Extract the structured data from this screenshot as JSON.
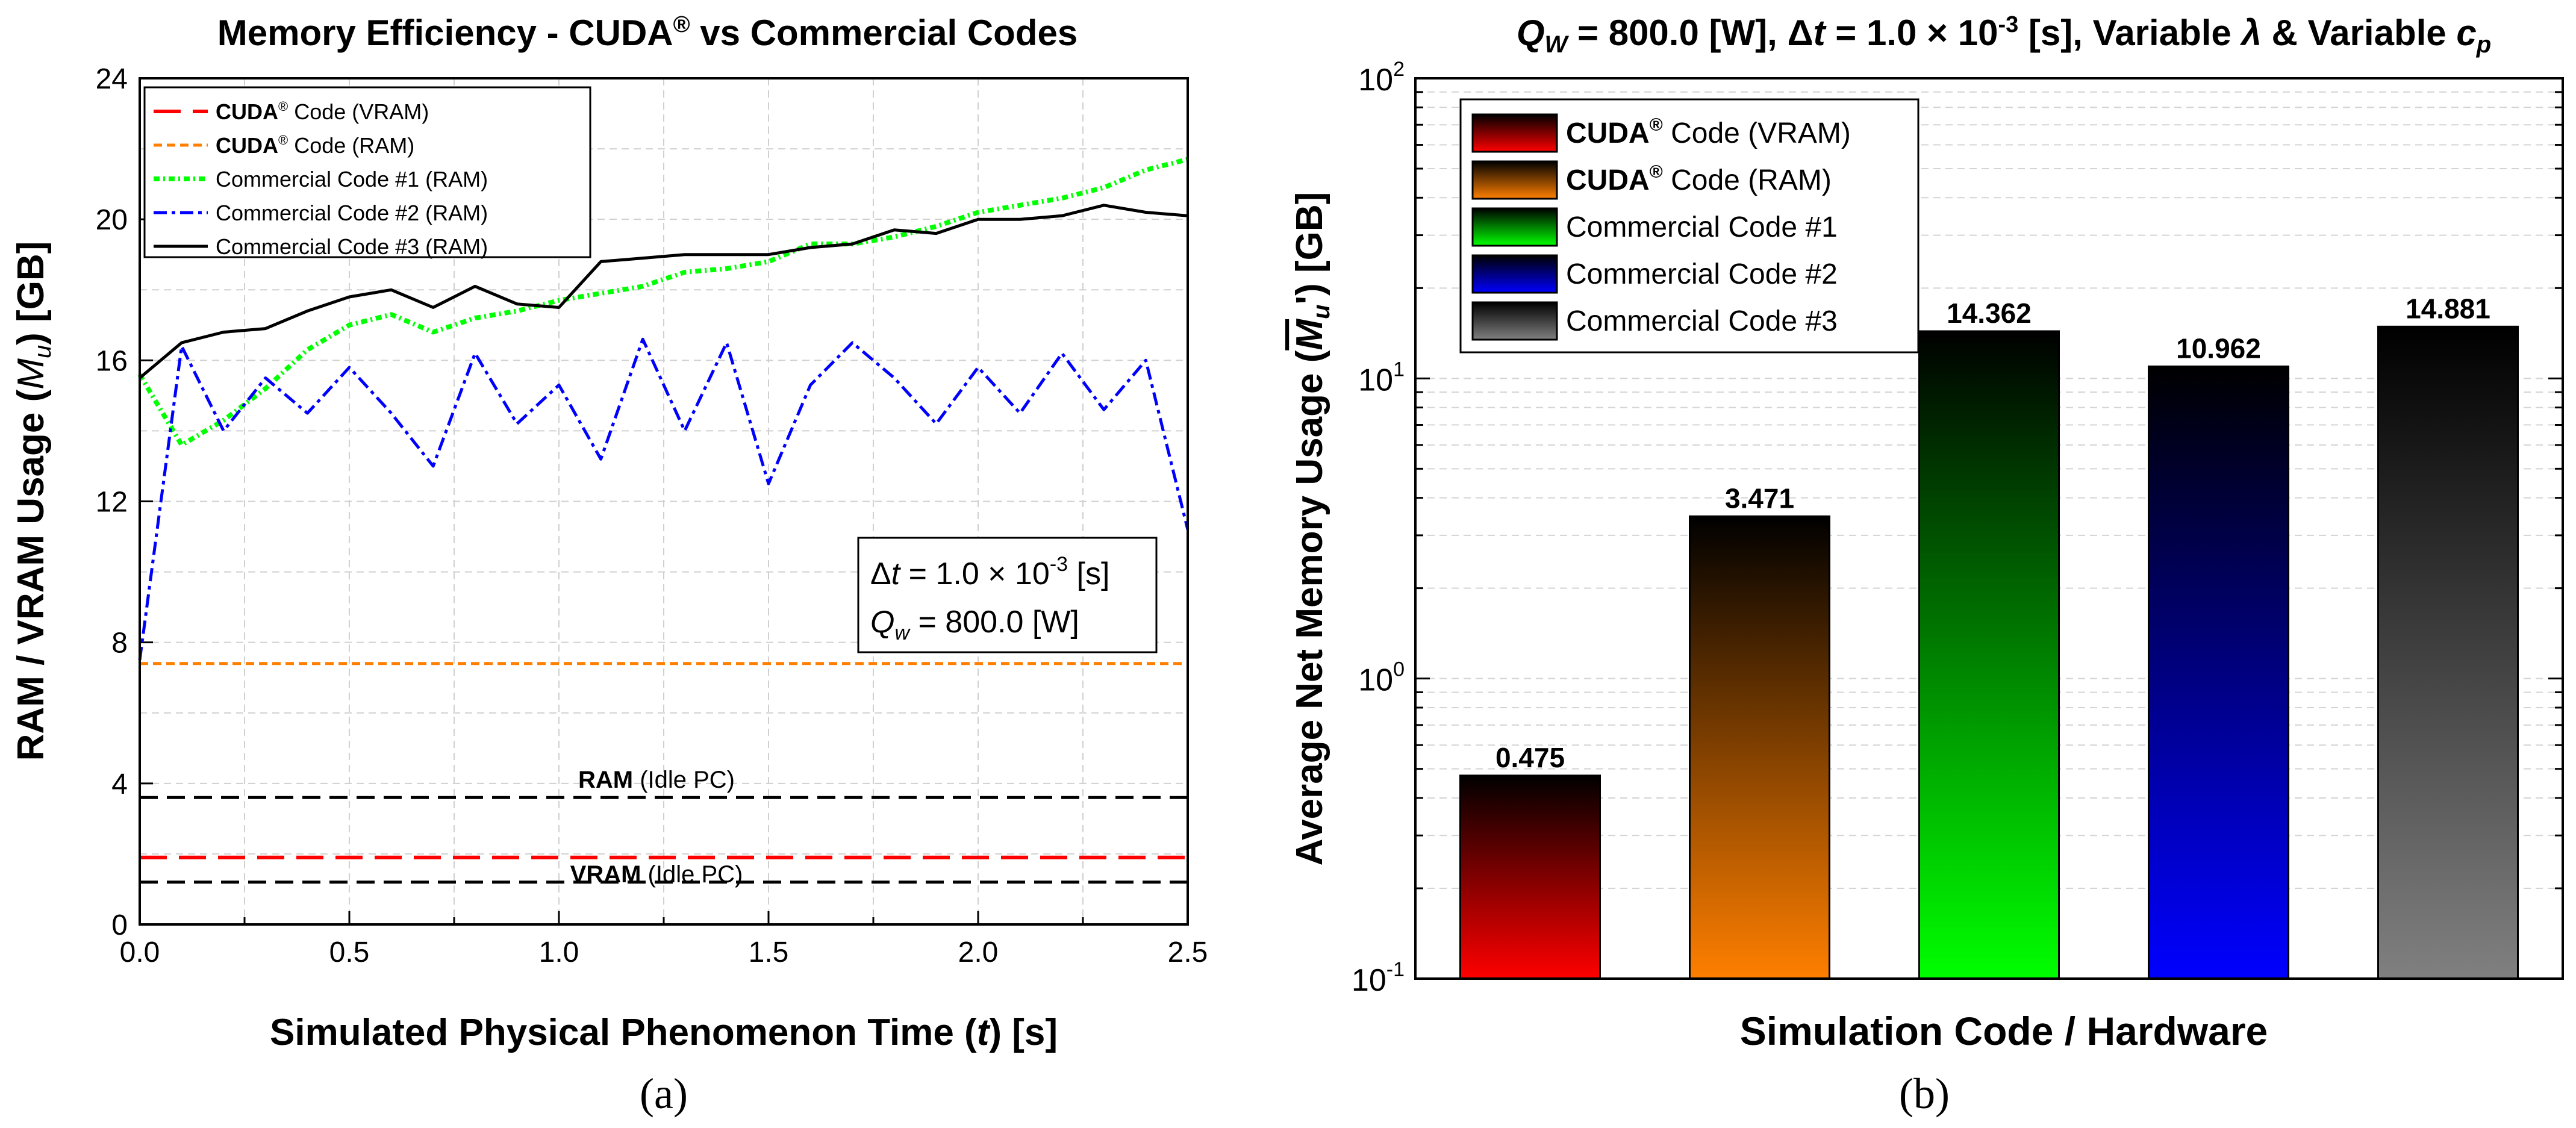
{
  "colors": {
    "cuda_vram": "#ff0000",
    "cuda_ram": "#ff7f00",
    "commercial_1": "#00ff00",
    "commercial_2": "#0000ff",
    "commercial_3": "#000000",
    "idle": "#000000",
    "bar_grey": "#808080"
  },
  "panel_a": {
    "title": "Memory Efficiency - CUDA® vs Commercial Codes",
    "xlabel": "Simulated Physical Phenomenon Time (t) [s]",
    "ylabel": "RAM / VRAM Usage (M_u) [GB]",
    "sublabel": "(a)",
    "legend": [
      {
        "bold": "CUDA",
        "sup": "®",
        "rest": " Code (VRAM)"
      },
      {
        "bold": "CUDA",
        "sup": "®",
        "rest": " Code (RAM)"
      },
      {
        "bold": "",
        "sup": "",
        "rest": "Commercial Code #1 (RAM)"
      },
      {
        "bold": "",
        "sup": "",
        "rest": "Commercial Code #2 (RAM)"
      },
      {
        "bold": "",
        "sup": "",
        "rest": "Commercial Code #3 (RAM)"
      }
    ],
    "annotation": {
      "line1": "Δt = 1.0 × 10-3 [s]",
      "line2": "Qw = 800.0 [W]"
    },
    "idle_labels": {
      "ram_bold": "RAM",
      "ram_rest": " (Idle PC)",
      "vram_bold": "VRAM",
      "vram_rest": " (Idle PC)"
    }
  },
  "panel_b": {
    "title": "Qw = 800.0 [W], Δt = 1.0 × 10-3 [s], Variable λ & Variable cp",
    "xlabel": "Simulation Code / Hardware",
    "ylabel": "Average Net Memory Usage (M̄u') [GB]",
    "sublabel": "(b)",
    "legend": [
      {
        "bold": "CUDA",
        "sup": "®",
        "rest": " Code (VRAM)"
      },
      {
        "bold": "CUDA",
        "sup": "®",
        "rest": " Code (RAM)"
      },
      {
        "bold": "",
        "sup": "",
        "rest": "Commercial Code #1"
      },
      {
        "bold": "",
        "sup": "",
        "rest": "Commercial Code #2"
      },
      {
        "bold": "",
        "sup": "",
        "rest": "Commercial Code #3"
      }
    ]
  },
  "chart_data": [
    {
      "type": "line",
      "title": "Memory Efficiency - CUDA® vs Commercial Codes",
      "xlabel": "Simulated Physical Phenomenon Time (t) [s]",
      "ylabel": "RAM / VRAM Usage (Mu) [GB]",
      "xlim": [
        0,
        2.5
      ],
      "ylim": [
        0,
        24
      ],
      "xticks": [
        "0.0",
        "0.5",
        "1.0",
        "1.5",
        "2.0",
        "2.5"
      ],
      "yticks": [
        "0",
        "4",
        "8",
        "12",
        "16",
        "20",
        "24"
      ],
      "x": [
        0.0,
        0.1,
        0.2,
        0.3,
        0.4,
        0.5,
        0.6,
        0.7,
        0.8,
        0.9,
        1.0,
        1.1,
        1.2,
        1.3,
        1.4,
        1.5,
        1.6,
        1.7,
        1.8,
        1.9,
        2.0,
        2.1,
        2.2,
        2.3,
        2.4,
        2.5
      ],
      "series": [
        {
          "name": "CUDA® Code (VRAM)",
          "values": [
            1.9,
            1.9,
            1.9,
            1.9,
            1.9,
            1.9,
            1.9,
            1.9,
            1.9,
            1.9,
            1.9,
            1.9,
            1.9,
            1.9,
            1.9,
            1.9,
            1.9,
            1.9,
            1.9,
            1.9,
            1.9,
            1.9,
            1.9,
            1.9,
            1.9,
            1.9
          ]
        },
        {
          "name": "CUDA® Code (RAM)",
          "values": [
            7.4,
            7.4,
            7.4,
            7.4,
            7.4,
            7.4,
            7.4,
            7.4,
            7.4,
            7.4,
            7.4,
            7.4,
            7.4,
            7.4,
            7.4,
            7.4,
            7.4,
            7.4,
            7.4,
            7.4,
            7.4,
            7.4,
            7.4,
            7.4,
            7.4,
            7.4
          ]
        },
        {
          "name": "Commercial Code #1 (RAM)",
          "values": [
            15.6,
            13.6,
            14.3,
            15.2,
            16.3,
            17.0,
            17.3,
            16.8,
            17.2,
            17.4,
            17.7,
            17.9,
            18.1,
            18.5,
            18.6,
            18.8,
            19.3,
            19.3,
            19.5,
            19.8,
            20.2,
            20.4,
            20.6,
            20.9,
            21.4,
            21.7
          ]
        },
        {
          "name": "Commercial Code #2 (RAM)",
          "values": [
            7.5,
            16.4,
            14.0,
            15.5,
            14.5,
            15.8,
            14.5,
            13.0,
            16.2,
            14.2,
            15.3,
            13.2,
            16.6,
            14.0,
            16.5,
            12.5,
            15.3,
            16.5,
            15.5,
            14.2,
            15.8,
            14.5,
            16.2,
            14.6,
            16.0,
            11.2
          ]
        },
        {
          "name": "Commercial Code #3 (RAM)",
          "values": [
            15.5,
            16.5,
            16.8,
            16.9,
            17.4,
            17.8,
            18.0,
            17.5,
            18.1,
            17.6,
            17.5,
            18.8,
            18.9,
            19.0,
            19.0,
            19.0,
            19.2,
            19.3,
            19.7,
            19.6,
            20.0,
            20.0,
            20.1,
            20.4,
            20.2,
            20.1
          ]
        },
        {
          "name": "RAM (Idle PC)",
          "values": [
            3.6,
            3.6,
            3.6,
            3.6,
            3.6,
            3.6,
            3.6,
            3.6,
            3.6,
            3.6,
            3.6,
            3.6,
            3.6,
            3.6,
            3.6,
            3.6,
            3.6,
            3.6,
            3.6,
            3.6,
            3.6,
            3.6,
            3.6,
            3.6,
            3.6,
            3.6
          ]
        },
        {
          "name": "VRAM (Idle PC)",
          "values": [
            1.2,
            1.2,
            1.2,
            1.2,
            1.2,
            1.2,
            1.2,
            1.2,
            1.2,
            1.2,
            1.2,
            1.2,
            1.2,
            1.2,
            1.2,
            1.2,
            1.2,
            1.2,
            1.2,
            1.2,
            1.2,
            1.2,
            1.2,
            1.2,
            1.2,
            1.2
          ]
        }
      ]
    },
    {
      "type": "bar",
      "title": "Qw = 800.0 [W], Δt = 1.0 × 10-3 [s], Variable λ & Variable cp",
      "xlabel": "Simulation Code / Hardware",
      "ylabel": "Average Net Memory Usage (M̄u') [GB]",
      "yscale": "log",
      "ylim": [
        0.1,
        100
      ],
      "ytick_bases": [
        "10",
        "10",
        "10",
        "10"
      ],
      "ytick_exponents": [
        "-1",
        "0",
        "1",
        "2"
      ],
      "categories": [
        "CUDA® Code (VRAM)",
        "CUDA® Code (RAM)",
        "Commercial Code #1",
        "Commercial Code #2",
        "Commercial Code #3"
      ],
      "values": [
        0.475,
        3.471,
        14.362,
        10.962,
        14.881
      ],
      "value_labels": [
        "0.475",
        "3.471",
        "14.362",
        "10.962",
        "14.881"
      ]
    }
  ]
}
